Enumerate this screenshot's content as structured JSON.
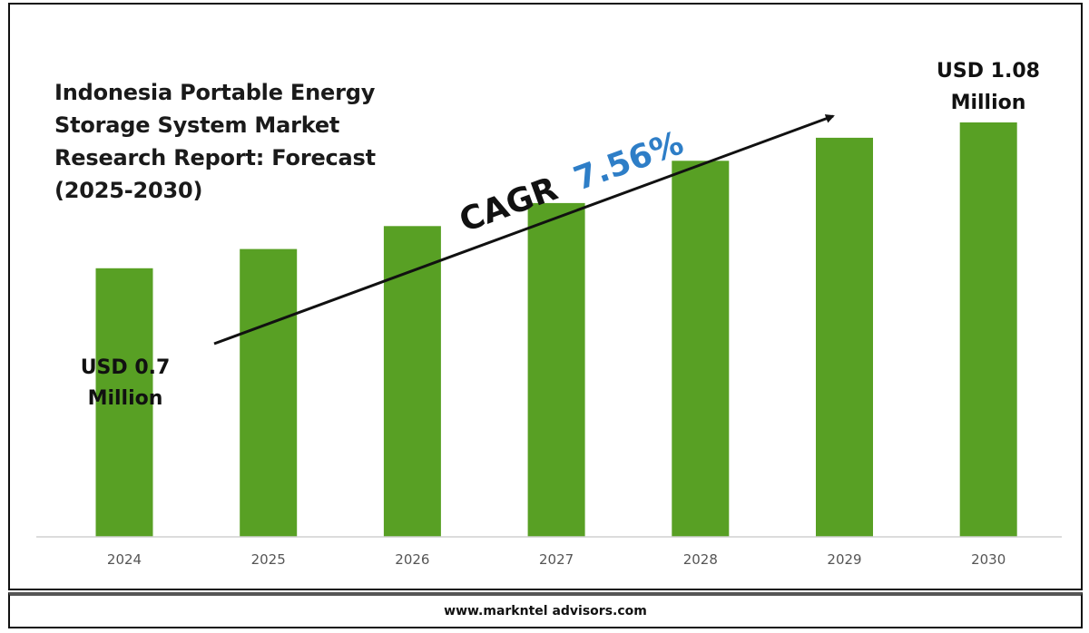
{
  "title": "Indonesia Portable Energy Storage System Market Research Report: Forecast (2025-2030)",
  "title_lines": [
    "Indonesia Portable Energy",
    "Storage System Market",
    "Research Report: Forecast",
    "(2025-2030)"
  ],
  "footer": "www.markntel advisors.com",
  "cagr": {
    "label": "CAGR",
    "value": "7.56%"
  },
  "colors": {
    "bar": "#58a024",
    "cagr_value": "#2e7ec7",
    "text": "#111111",
    "axis": "#d0d0d0"
  },
  "start_label": [
    "USD 0.7",
    "Million"
  ],
  "end_label": [
    "USD 1.08",
    "Million"
  ],
  "chart_data": {
    "type": "bar",
    "title": "Indonesia Portable Energy Storage System Market Research Report: Forecast (2025-2030)",
    "categories": [
      "2024",
      "2025",
      "2026",
      "2027",
      "2028",
      "2029",
      "2030"
    ],
    "values": [
      0.7,
      0.75,
      0.81,
      0.87,
      0.98,
      1.04,
      1.08
    ],
    "ylim": [
      0,
      1.2
    ],
    "unit": "USD Million",
    "grid": false,
    "legend": "none",
    "xlabel": "",
    "ylabel": ""
  }
}
